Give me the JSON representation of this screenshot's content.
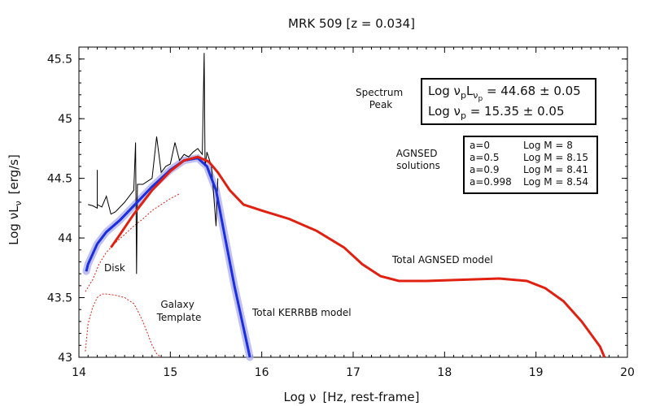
{
  "chart_data": {
    "type": "line",
    "title": "MRK 509  [z = 0.034]",
    "xlabel_main": "Log ν",
    "xlabel_unit": "[Hz, rest-frame]",
    "ylabel_main": "Log νL",
    "ylabel_sub": "ν",
    "ylabel_unit": "[erg/s]",
    "xlim": [
      14,
      20
    ],
    "ylim": [
      43,
      45.6
    ],
    "xticks": [
      "14",
      "15",
      "16",
      "17",
      "18",
      "19",
      "20"
    ],
    "xtick_values": [
      14,
      15,
      16,
      17,
      18,
      19,
      20
    ],
    "yticks": [
      "43",
      "43.5",
      "44",
      "44.5",
      "45",
      "45.5"
    ],
    "ytick_values": [
      43,
      43.5,
      44,
      44.5,
      45,
      45.5
    ],
    "colors": {
      "agnsed": "#e02010",
      "kerrbb": "#1a2ee0",
      "band": "#b0b0ee",
      "spectrum": "#000000",
      "galaxy": "#e02010"
    },
    "series": [
      {
        "name": "Total AGNSED model",
        "color": "#e02010",
        "x": [
          14.35,
          14.45,
          14.6,
          14.8,
          15.0,
          15.15,
          15.3,
          15.42,
          15.52,
          15.65,
          15.8,
          16.0,
          16.3,
          16.6,
          16.9,
          17.1,
          17.3,
          17.5,
          17.8,
          18.2,
          18.6,
          18.9,
          19.1,
          19.3,
          19.5,
          19.7,
          19.75
        ],
        "y": [
          43.92,
          44.03,
          44.2,
          44.4,
          44.56,
          44.65,
          44.68,
          44.64,
          44.55,
          44.4,
          44.28,
          44.23,
          44.16,
          44.06,
          43.92,
          43.78,
          43.68,
          43.64,
          43.64,
          43.65,
          43.66,
          43.64,
          43.58,
          43.47,
          43.3,
          43.09,
          43.0
        ]
      },
      {
        "name": "Total KERRBB model",
        "color": "#1a2ee0",
        "x": [
          14.08,
          14.1,
          14.2,
          14.3,
          14.45,
          14.6,
          14.8,
          15.0,
          15.15,
          15.3,
          15.4,
          15.5,
          15.6,
          15.7,
          15.8,
          15.87
        ],
        "y": [
          43.72,
          43.78,
          43.95,
          44.05,
          44.15,
          44.27,
          44.43,
          44.57,
          44.65,
          44.67,
          44.6,
          44.4,
          44.0,
          43.6,
          43.25,
          43.0
        ]
      },
      {
        "name": "Spectrum",
        "color": "#000000",
        "x": [
          14.1,
          14.15,
          14.2,
          14.2,
          14.2,
          14.25,
          14.3,
          14.35,
          14.4,
          14.5,
          14.6,
          14.62,
          14.63,
          14.64,
          14.7,
          14.8,
          14.85,
          14.9,
          14.95,
          15.0,
          15.05,
          15.1,
          15.15,
          15.2,
          15.25,
          15.3,
          15.35,
          15.37,
          15.38,
          15.4,
          15.45,
          15.5,
          15.52
        ],
        "y": [
          44.28,
          44.27,
          44.25,
          44.57,
          44.28,
          44.26,
          44.35,
          44.2,
          44.22,
          44.3,
          44.4,
          44.8,
          43.7,
          44.45,
          44.45,
          44.5,
          44.85,
          44.55,
          44.6,
          44.62,
          44.8,
          44.65,
          44.7,
          44.68,
          44.72,
          44.75,
          44.7,
          45.55,
          44.6,
          44.72,
          44.6,
          44.1,
          44.5
        ]
      },
      {
        "name": "Galaxy Template",
        "color": "#e02010",
        "x": [
          14.07,
          14.15,
          14.22,
          14.3,
          14.4,
          14.5,
          14.6,
          14.7,
          14.8,
          14.9,
          15.0,
          15.1
        ],
        "y": [
          43.55,
          43.65,
          43.78,
          43.88,
          43.96,
          44.03,
          44.1,
          44.16,
          44.23,
          44.28,
          44.33,
          44.37
        ]
      },
      {
        "name": "Galaxy Template (shape)",
        "color": "#e02010",
        "x": [
          14.07,
          14.1,
          14.15,
          14.2,
          14.25,
          14.3,
          14.4,
          14.5,
          14.6,
          14.65,
          14.7,
          14.75,
          14.8,
          14.85,
          14.9
        ],
        "y": [
          43.05,
          43.28,
          43.42,
          43.5,
          43.53,
          43.53,
          43.52,
          43.5,
          43.45,
          43.38,
          43.3,
          43.2,
          43.1,
          43.03,
          43.0
        ]
      }
    ],
    "labels": {
      "disk": "Disk",
      "galaxy_line1": "Galaxy",
      "galaxy_line2": "Template",
      "kerrbb": "Total KERRBB model",
      "agnsed": "Total AGNSED model",
      "spectrum_peak_line1": "Spectrum",
      "spectrum_peak_line2": "Peak",
      "agnsed_sol_line1": "AGNSED",
      "agnsed_sol_line2": "solutions"
    },
    "peak_box": {
      "line1_pre": "Log ν",
      "line1_sub1": "p",
      "line1_mid": "L",
      "line1_sub2": "ν",
      "line1_sub3": "p",
      "line1_val": " = 44.68 ± 0.05",
      "line2_pre": "Log ν",
      "line2_sub": "p",
      "line2_val": " = 15.35 ± 0.05"
    },
    "solutions": [
      {
        "spin": "a=0",
        "mass": "Log M = 8"
      },
      {
        "spin": "a=0.5",
        "mass": "Log M = 8.15"
      },
      {
        "spin": "a=0.9",
        "mass": "Log M = 8.41"
      },
      {
        "spin": "a=0.998",
        "mass": "Log M = 8.54"
      }
    ]
  }
}
